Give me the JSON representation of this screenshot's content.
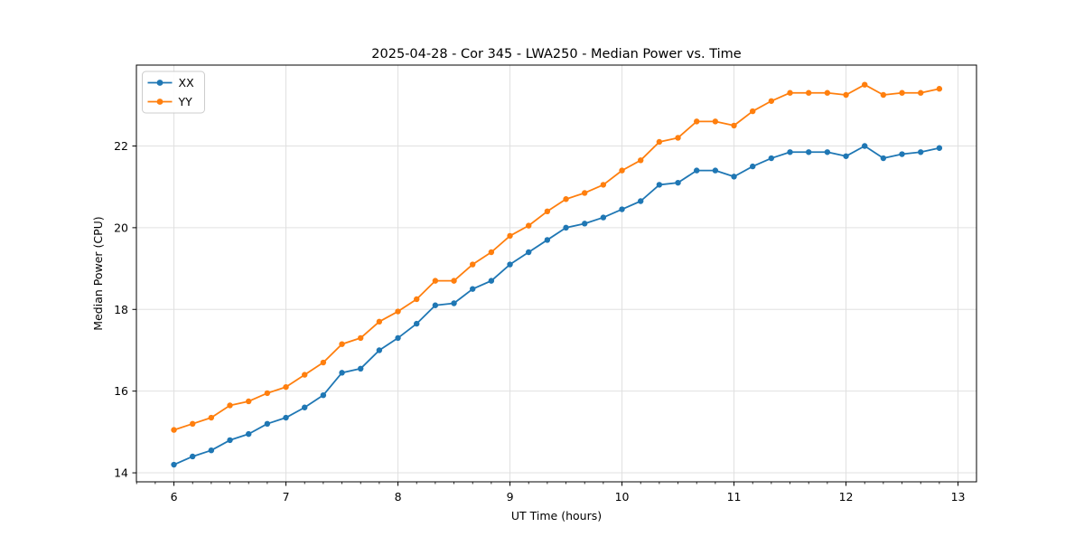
{
  "chart_data": {
    "type": "line",
    "title": "2025-04-28 - Cor 345 - LWA250 - Median Power vs. Time",
    "xlabel": "UT Time (hours)",
    "ylabel": "Median Power (CPU)",
    "xlim": [
      5.665,
      13.165
    ],
    "ylim": [
      13.78,
      23.98
    ],
    "xticks": [
      6,
      7,
      8,
      9,
      10,
      11,
      12,
      13
    ],
    "yticks": [
      14,
      16,
      18,
      20,
      22
    ],
    "x_minor_tick_step_hours": 0.16667,
    "grid": true,
    "legend_position": "upper left",
    "background_color": "#ffffff",
    "grid_color": "#e0e0e0",
    "x": [
      6.0,
      6.1667,
      6.3333,
      6.5,
      6.6667,
      6.8333,
      7.0,
      7.1667,
      7.3333,
      7.5,
      7.6667,
      7.8333,
      8.0,
      8.1667,
      8.3333,
      8.5,
      8.6667,
      8.8333,
      9.0,
      9.1667,
      9.3333,
      9.5,
      9.6667,
      9.8333,
      10.0,
      10.1667,
      10.3333,
      10.5,
      10.6667,
      10.8333,
      11.0,
      11.1667,
      11.3333,
      11.5,
      11.6667,
      11.8333,
      12.0,
      12.1667,
      12.3333,
      12.5,
      12.6667,
      12.8333
    ],
    "series": [
      {
        "name": "XX",
        "color": "#1f77b4",
        "values": [
          14.2,
          14.4,
          14.55,
          14.8,
          14.95,
          15.2,
          15.35,
          15.6,
          15.9,
          16.45,
          16.55,
          17.0,
          17.3,
          17.65,
          18.1,
          18.15,
          18.5,
          18.7,
          19.1,
          19.4,
          19.7,
          20.0,
          20.1,
          20.25,
          20.45,
          20.65,
          21.05,
          21.1,
          21.4,
          21.4,
          21.25,
          21.5,
          21.7,
          21.85,
          21.85,
          21.85,
          21.75,
          22.0,
          21.7,
          21.8,
          21.85,
          21.95
        ]
      },
      {
        "name": "YY",
        "color": "#ff7f0e",
        "values": [
          15.05,
          15.2,
          15.35,
          15.65,
          15.75,
          15.95,
          16.1,
          16.4,
          16.7,
          17.15,
          17.3,
          17.7,
          17.95,
          18.25,
          18.7,
          18.7,
          19.1,
          19.4,
          19.8,
          20.05,
          20.4,
          20.7,
          20.85,
          21.05,
          21.4,
          21.65,
          22.1,
          22.2,
          22.6,
          22.6,
          22.5,
          22.85,
          23.1,
          23.3,
          23.3,
          23.3,
          23.25,
          23.5,
          23.25,
          23.3,
          23.3,
          23.4
        ]
      }
    ]
  }
}
